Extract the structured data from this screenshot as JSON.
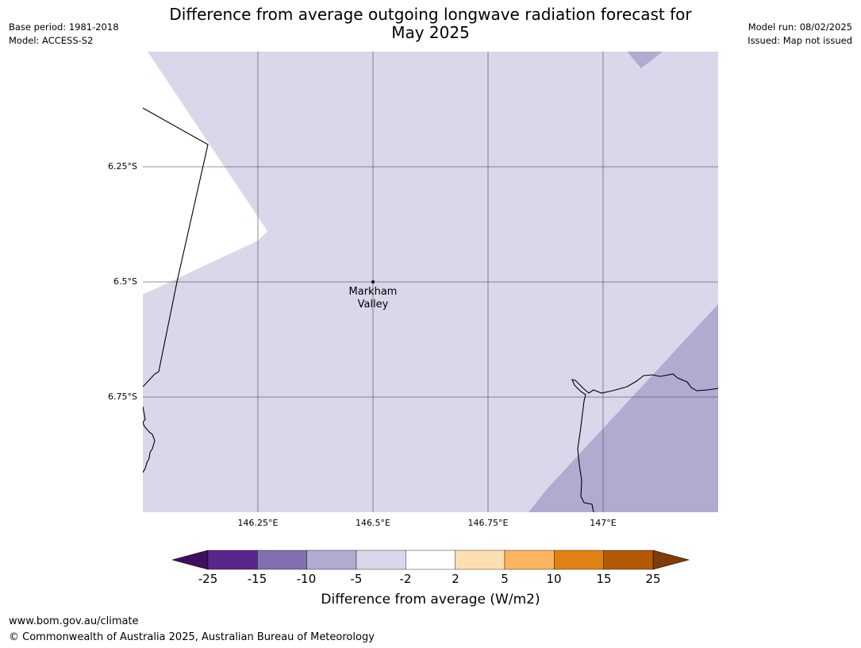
{
  "title": {
    "line1": "Difference from average outgoing longwave radiation forecast for",
    "line2": "May 2025"
  },
  "meta_left": {
    "base_period": "Base period: 1981-2018",
    "model": "Model: ACCESS-S2"
  },
  "meta_right": {
    "model_run": "Model run: 08/02/2025",
    "issued": "Issued: Map not issued"
  },
  "map": {
    "lat_labels": [
      "6.25°S",
      "6.5°S",
      "6.75°S"
    ],
    "lon_labels": [
      "146.25°E",
      "146.5°E",
      "146.75°E",
      "147°E"
    ],
    "place": {
      "name_line1": "Markham",
      "name_line2": "Valley"
    },
    "colors": {
      "band_neutral": "#ffffff",
      "band_minus5_minus2": "#d8d8ea",
      "band_minus10_minus5": "#b1abd2",
      "coastline": "#000000",
      "gridline": "#555555"
    }
  },
  "colorbar": {
    "title": "Difference from average (W/m2)",
    "ticks": [
      "-25",
      "-15",
      "-10",
      "-5",
      "-2",
      "2",
      "5",
      "10",
      "15",
      "25"
    ],
    "under_color": "#3f0f5f",
    "over_color": "#7f3b08",
    "bins": [
      {
        "from": -25,
        "to": -15,
        "color": "#5a2689"
      },
      {
        "from": -15,
        "to": -10,
        "color": "#8170b0"
      },
      {
        "from": -10,
        "to": -5,
        "color": "#b1abd2"
      },
      {
        "from": -5,
        "to": -2,
        "color": "#d8d8ea"
      },
      {
        "from": -2,
        "to": 2,
        "color": "#ffffff"
      },
      {
        "from": 2,
        "to": 5,
        "color": "#fedfb1"
      },
      {
        "from": 5,
        "to": 10,
        "color": "#fbb560"
      },
      {
        "from": 10,
        "to": 15,
        "color": "#e08213"
      },
      {
        "from": 15,
        "to": 25,
        "color": "#b35805"
      }
    ]
  },
  "footer": {
    "url": "www.bom.gov.au/climate",
    "copyright": "© Commonwealth of Australia 2025, Australian Bureau of Meteorology"
  }
}
